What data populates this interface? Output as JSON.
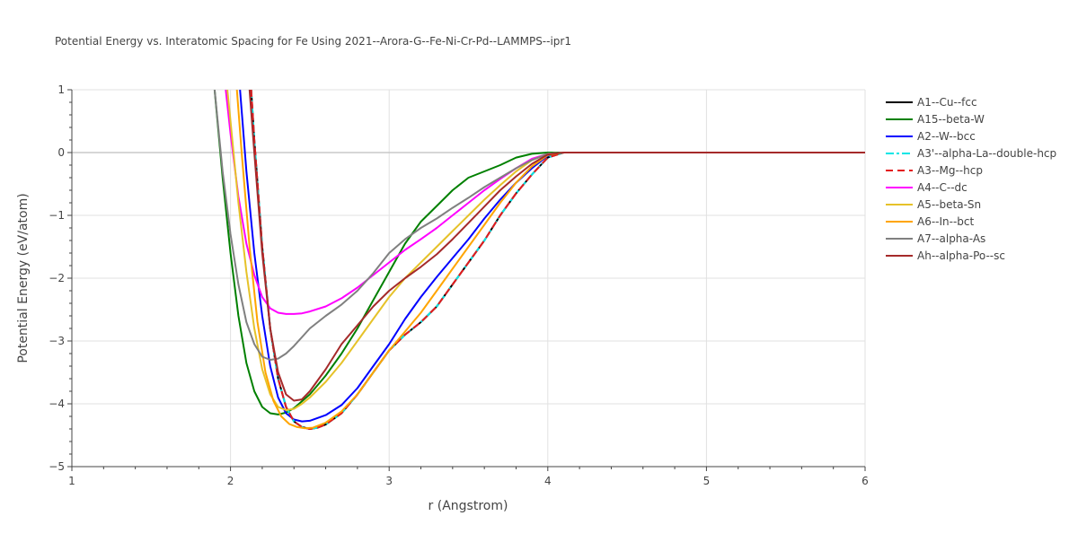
{
  "chart_data": {
    "type": "line",
    "title": "Potential Energy vs. Interatomic Spacing for Fe Using 2021--Arora-G--Fe-Ni-Cr-Pd--LAMMPS--ipr1",
    "xlabel": "r (Angstrom)",
    "ylabel": "Potential Energy (eV/atom)",
    "xlim": [
      1,
      6
    ],
    "ylim": [
      -5,
      1
    ],
    "xticks": [
      1,
      2,
      3,
      4,
      5,
      6
    ],
    "yticks": [
      -5,
      -4,
      -3,
      -2,
      -1,
      0,
      1
    ],
    "xtick_labels": [
      "1",
      "2",
      "3",
      "4",
      "5",
      "6"
    ],
    "ytick_labels": [
      "−5",
      "−4",
      "−3",
      "−2",
      "−1",
      "0",
      "1"
    ],
    "grid": true,
    "legend_position": "top-right",
    "series": [
      {
        "name": "A1--Cu--fcc",
        "color": "#000000",
        "dash": "solid",
        "points": [
          [
            2.13,
            1.0
          ],
          [
            2.15,
            0.2
          ],
          [
            2.2,
            -1.5
          ],
          [
            2.25,
            -2.8
          ],
          [
            2.3,
            -3.6
          ],
          [
            2.35,
            -4.05
          ],
          [
            2.4,
            -4.28
          ],
          [
            2.45,
            -4.37
          ],
          [
            2.5,
            -4.4
          ],
          [
            2.55,
            -4.38
          ],
          [
            2.6,
            -4.33
          ],
          [
            2.7,
            -4.15
          ],
          [
            2.8,
            -3.85
          ],
          [
            2.9,
            -3.5
          ],
          [
            3.0,
            -3.15
          ],
          [
            3.1,
            -2.9
          ],
          [
            3.2,
            -2.7
          ],
          [
            3.3,
            -2.45
          ],
          [
            3.4,
            -2.1
          ],
          [
            3.5,
            -1.75
          ],
          [
            3.6,
            -1.4
          ],
          [
            3.7,
            -1.0
          ],
          [
            3.8,
            -0.65
          ],
          [
            3.9,
            -0.35
          ],
          [
            4.0,
            -0.08
          ],
          [
            4.1,
            0.0
          ],
          [
            4.5,
            0.0
          ],
          [
            6.0,
            0.0
          ]
        ]
      },
      {
        "name": "A15--beta-W",
        "color": "#008000",
        "dash": "solid",
        "points": [
          [
            1.9,
            1.0
          ],
          [
            1.95,
            -0.4
          ],
          [
            2.0,
            -1.6
          ],
          [
            2.05,
            -2.6
          ],
          [
            2.1,
            -3.35
          ],
          [
            2.15,
            -3.8
          ],
          [
            2.2,
            -4.05
          ],
          [
            2.25,
            -4.15
          ],
          [
            2.3,
            -4.17
          ],
          [
            2.35,
            -4.14
          ],
          [
            2.4,
            -4.07
          ],
          [
            2.5,
            -3.85
          ],
          [
            2.6,
            -3.55
          ],
          [
            2.7,
            -3.2
          ],
          [
            2.8,
            -2.8
          ],
          [
            2.9,
            -2.35
          ],
          [
            3.0,
            -1.9
          ],
          [
            3.1,
            -1.45
          ],
          [
            3.2,
            -1.1
          ],
          [
            3.3,
            -0.85
          ],
          [
            3.4,
            -0.6
          ],
          [
            3.5,
            -0.4
          ],
          [
            3.6,
            -0.3
          ],
          [
            3.7,
            -0.2
          ],
          [
            3.8,
            -0.08
          ],
          [
            3.9,
            -0.02
          ],
          [
            4.0,
            0.0
          ],
          [
            4.5,
            0.0
          ],
          [
            6.0,
            0.0
          ]
        ]
      },
      {
        "name": "A2--W--bcc",
        "color": "#0000ff",
        "dash": "solid",
        "points": [
          [
            2.06,
            1.0
          ],
          [
            2.1,
            -0.3
          ],
          [
            2.15,
            -1.6
          ],
          [
            2.2,
            -2.6
          ],
          [
            2.25,
            -3.4
          ],
          [
            2.3,
            -3.9
          ],
          [
            2.35,
            -4.15
          ],
          [
            2.4,
            -4.25
          ],
          [
            2.45,
            -4.28
          ],
          [
            2.5,
            -4.27
          ],
          [
            2.6,
            -4.18
          ],
          [
            2.7,
            -4.02
          ],
          [
            2.8,
            -3.75
          ],
          [
            2.9,
            -3.4
          ],
          [
            3.0,
            -3.05
          ],
          [
            3.1,
            -2.65
          ],
          [
            3.2,
            -2.3
          ],
          [
            3.3,
            -1.98
          ],
          [
            3.4,
            -1.68
          ],
          [
            3.5,
            -1.38
          ],
          [
            3.6,
            -1.05
          ],
          [
            3.7,
            -0.75
          ],
          [
            3.8,
            -0.48
          ],
          [
            3.9,
            -0.25
          ],
          [
            4.0,
            -0.05
          ],
          [
            4.1,
            0.0
          ],
          [
            4.5,
            0.0
          ],
          [
            6.0,
            0.0
          ]
        ]
      },
      {
        "name": "A3'--alpha-La--double-hcp",
        "color": "#00e5e5",
        "dash": "dashdot",
        "points": [
          [
            2.13,
            1.0
          ],
          [
            2.15,
            0.2
          ],
          [
            2.2,
            -1.5
          ],
          [
            2.25,
            -2.8
          ],
          [
            2.3,
            -3.6
          ],
          [
            2.35,
            -4.05
          ],
          [
            2.4,
            -4.28
          ],
          [
            2.45,
            -4.37
          ],
          [
            2.5,
            -4.4
          ],
          [
            2.55,
            -4.38
          ],
          [
            2.6,
            -4.33
          ],
          [
            2.7,
            -4.15
          ],
          [
            2.8,
            -3.85
          ],
          [
            2.9,
            -3.5
          ],
          [
            3.0,
            -3.15
          ],
          [
            3.1,
            -2.9
          ],
          [
            3.2,
            -2.7
          ],
          [
            3.3,
            -2.45
          ],
          [
            3.4,
            -2.1
          ],
          [
            3.5,
            -1.75
          ],
          [
            3.6,
            -1.4
          ],
          [
            3.7,
            -1.0
          ],
          [
            3.8,
            -0.65
          ],
          [
            3.9,
            -0.35
          ],
          [
            4.0,
            -0.08
          ],
          [
            4.1,
            0.0
          ],
          [
            4.5,
            0.0
          ],
          [
            6.0,
            0.0
          ]
        ]
      },
      {
        "name": "A3--Mg--hcp",
        "color": "#e41a1c",
        "dash": "dash",
        "points": [
          [
            2.13,
            1.0
          ],
          [
            2.15,
            0.2
          ],
          [
            2.2,
            -1.5
          ],
          [
            2.25,
            -2.8
          ],
          [
            2.3,
            -3.6
          ],
          [
            2.35,
            -4.05
          ],
          [
            2.4,
            -4.28
          ],
          [
            2.45,
            -4.37
          ],
          [
            2.5,
            -4.4
          ],
          [
            2.55,
            -4.38
          ],
          [
            2.6,
            -4.33
          ],
          [
            2.7,
            -4.15
          ],
          [
            2.8,
            -3.85
          ],
          [
            2.9,
            -3.5
          ],
          [
            3.0,
            -3.15
          ],
          [
            3.1,
            -2.9
          ],
          [
            3.2,
            -2.7
          ],
          [
            3.3,
            -2.45
          ],
          [
            3.4,
            -2.1
          ],
          [
            3.5,
            -1.75
          ],
          [
            3.6,
            -1.4
          ],
          [
            3.7,
            -1.0
          ],
          [
            3.8,
            -0.65
          ],
          [
            3.9,
            -0.35
          ],
          [
            4.0,
            -0.08
          ],
          [
            4.1,
            0.0
          ],
          [
            4.5,
            0.0
          ],
          [
            6.0,
            0.0
          ]
        ]
      },
      {
        "name": "A4--C--dc",
        "color": "#ff00ff",
        "dash": "solid",
        "points": [
          [
            1.97,
            1.0
          ],
          [
            2.0,
            0.3
          ],
          [
            2.05,
            -0.7
          ],
          [
            2.1,
            -1.45
          ],
          [
            2.15,
            -1.95
          ],
          [
            2.2,
            -2.3
          ],
          [
            2.25,
            -2.48
          ],
          [
            2.3,
            -2.55
          ],
          [
            2.35,
            -2.57
          ],
          [
            2.4,
            -2.57
          ],
          [
            2.45,
            -2.56
          ],
          [
            2.5,
            -2.53
          ],
          [
            2.6,
            -2.45
          ],
          [
            2.7,
            -2.32
          ],
          [
            2.8,
            -2.15
          ],
          [
            2.9,
            -1.95
          ],
          [
            3.0,
            -1.75
          ],
          [
            3.1,
            -1.55
          ],
          [
            3.2,
            -1.38
          ],
          [
            3.3,
            -1.2
          ],
          [
            3.4,
            -1.0
          ],
          [
            3.5,
            -0.8
          ],
          [
            3.6,
            -0.6
          ],
          [
            3.7,
            -0.42
          ],
          [
            3.8,
            -0.25
          ],
          [
            3.9,
            -0.1
          ],
          [
            4.0,
            -0.02
          ],
          [
            4.1,
            0.0
          ],
          [
            4.5,
            0.0
          ],
          [
            6.0,
            0.0
          ]
        ]
      },
      {
        "name": "A5--beta-Sn",
        "color": "#e6c229",
        "dash": "solid",
        "points": [
          [
            1.98,
            1.0
          ],
          [
            2.0,
            0.5
          ],
          [
            2.05,
            -0.8
          ],
          [
            2.1,
            -1.9
          ],
          [
            2.15,
            -2.8
          ],
          [
            2.2,
            -3.45
          ],
          [
            2.25,
            -3.85
          ],
          [
            2.3,
            -4.05
          ],
          [
            2.35,
            -4.1
          ],
          [
            2.4,
            -4.08
          ],
          [
            2.45,
            -4.0
          ],
          [
            2.5,
            -3.9
          ],
          [
            2.6,
            -3.65
          ],
          [
            2.7,
            -3.35
          ],
          [
            2.8,
            -3.0
          ],
          [
            2.9,
            -2.65
          ],
          [
            3.0,
            -2.3
          ],
          [
            3.1,
            -2.0
          ],
          [
            3.2,
            -1.75
          ],
          [
            3.3,
            -1.5
          ],
          [
            3.4,
            -1.25
          ],
          [
            3.5,
            -1.0
          ],
          [
            3.6,
            -0.75
          ],
          [
            3.7,
            -0.52
          ],
          [
            3.8,
            -0.3
          ],
          [
            3.9,
            -0.12
          ],
          [
            4.0,
            -0.02
          ],
          [
            4.1,
            0.0
          ],
          [
            4.5,
            0.0
          ],
          [
            6.0,
            0.0
          ]
        ]
      },
      {
        "name": "A6--In--bct",
        "color": "#ffa500",
        "dash": "solid",
        "points": [
          [
            2.04,
            1.0
          ],
          [
            2.07,
            0.0
          ],
          [
            2.12,
            -1.5
          ],
          [
            2.17,
            -2.7
          ],
          [
            2.22,
            -3.5
          ],
          [
            2.27,
            -3.95
          ],
          [
            2.32,
            -4.2
          ],
          [
            2.37,
            -4.32
          ],
          [
            2.42,
            -4.37
          ],
          [
            2.47,
            -4.39
          ],
          [
            2.52,
            -4.38
          ],
          [
            2.6,
            -4.3
          ],
          [
            2.7,
            -4.12
          ],
          [
            2.8,
            -3.85
          ],
          [
            2.9,
            -3.5
          ],
          [
            3.0,
            -3.15
          ],
          [
            3.1,
            -2.85
          ],
          [
            3.2,
            -2.55
          ],
          [
            3.3,
            -2.2
          ],
          [
            3.4,
            -1.85
          ],
          [
            3.5,
            -1.5
          ],
          [
            3.6,
            -1.15
          ],
          [
            3.7,
            -0.8
          ],
          [
            3.8,
            -0.48
          ],
          [
            3.9,
            -0.22
          ],
          [
            4.0,
            -0.04
          ],
          [
            4.1,
            0.0
          ],
          [
            4.5,
            0.0
          ],
          [
            6.0,
            0.0
          ]
        ]
      },
      {
        "name": "A7--alpha-As",
        "color": "#808080",
        "dash": "solid",
        "points": [
          [
            1.9,
            1.0
          ],
          [
            1.95,
            -0.3
          ],
          [
            2.0,
            -1.3
          ],
          [
            2.05,
            -2.1
          ],
          [
            2.1,
            -2.7
          ],
          [
            2.15,
            -3.05
          ],
          [
            2.2,
            -3.25
          ],
          [
            2.25,
            -3.3
          ],
          [
            2.3,
            -3.28
          ],
          [
            2.35,
            -3.2
          ],
          [
            2.4,
            -3.08
          ],
          [
            2.5,
            -2.8
          ],
          [
            2.6,
            -2.6
          ],
          [
            2.7,
            -2.42
          ],
          [
            2.8,
            -2.2
          ],
          [
            2.9,
            -1.92
          ],
          [
            3.0,
            -1.6
          ],
          [
            3.1,
            -1.38
          ],
          [
            3.2,
            -1.2
          ],
          [
            3.3,
            -1.05
          ],
          [
            3.4,
            -0.88
          ],
          [
            3.5,
            -0.72
          ],
          [
            3.6,
            -0.55
          ],
          [
            3.7,
            -0.4
          ],
          [
            3.8,
            -0.25
          ],
          [
            3.9,
            -0.12
          ],
          [
            4.0,
            -0.02
          ],
          [
            4.1,
            0.0
          ],
          [
            4.5,
            0.0
          ],
          [
            6.0,
            0.0
          ]
        ]
      },
      {
        "name": "Ah--alpha-Po--sc",
        "color": "#a52a2a",
        "dash": "solid",
        "points": [
          [
            2.12,
            1.0
          ],
          [
            2.15,
            0.0
          ],
          [
            2.2,
            -1.6
          ],
          [
            2.25,
            -2.8
          ],
          [
            2.3,
            -3.5
          ],
          [
            2.35,
            -3.85
          ],
          [
            2.4,
            -3.95
          ],
          [
            2.45,
            -3.93
          ],
          [
            2.5,
            -3.8
          ],
          [
            2.6,
            -3.45
          ],
          [
            2.7,
            -3.05
          ],
          [
            2.8,
            -2.75
          ],
          [
            2.9,
            -2.45
          ],
          [
            3.0,
            -2.2
          ],
          [
            3.1,
            -2.0
          ],
          [
            3.2,
            -1.82
          ],
          [
            3.3,
            -1.62
          ],
          [
            3.4,
            -1.38
          ],
          [
            3.5,
            -1.12
          ],
          [
            3.6,
            -0.86
          ],
          [
            3.7,
            -0.6
          ],
          [
            3.8,
            -0.38
          ],
          [
            3.9,
            -0.18
          ],
          [
            4.0,
            -0.03
          ],
          [
            4.1,
            0.0
          ],
          [
            4.5,
            0.0
          ],
          [
            6.0,
            0.0
          ]
        ]
      }
    ]
  }
}
